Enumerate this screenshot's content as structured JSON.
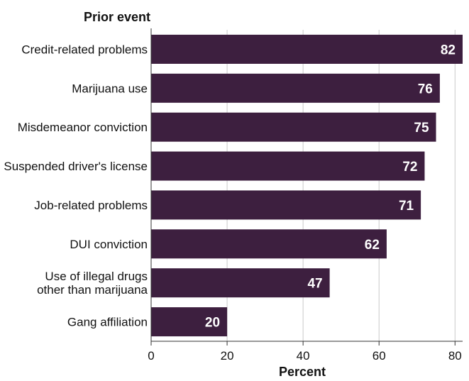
{
  "chart_data": {
    "type": "bar",
    "orientation": "horizontal",
    "category_axis_title": "Prior event",
    "xlabel": "Percent",
    "categories": [
      [
        "Credit-related problems"
      ],
      [
        "Marijuana use"
      ],
      [
        "Misdemeanor conviction"
      ],
      [
        "Suspended driver's license"
      ],
      [
        "Job-related problems"
      ],
      [
        "DUI conviction"
      ],
      [
        "Use of illegal drugs",
        "other than marijuana"
      ],
      [
        "Gang affiliation"
      ]
    ],
    "values": [
      82,
      76,
      75,
      72,
      71,
      62,
      47,
      20
    ],
    "xlim": [
      0,
      82
    ],
    "xticks": [
      0,
      20,
      40,
      60,
      80
    ],
    "grid": "vertical",
    "colors": {
      "bar": "#3d1f3f",
      "bar_label": "#ffffff",
      "text": "#111111",
      "grid": "#c8c8c8",
      "axis": "#333333"
    }
  }
}
